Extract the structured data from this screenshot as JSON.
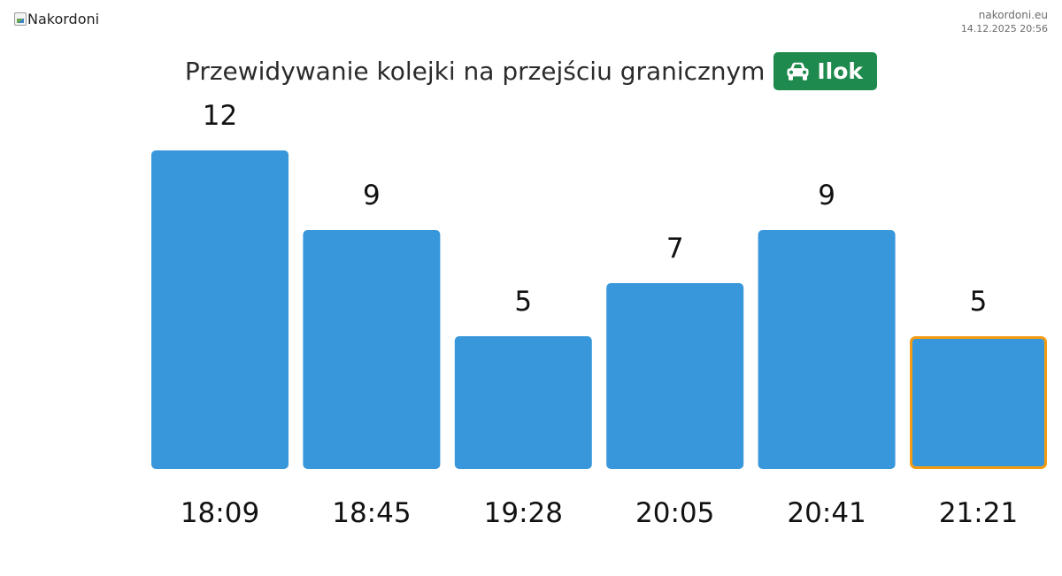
{
  "header": {
    "logo_alt": "Nakordoni",
    "site_domain": "nakordoni.eu",
    "timestamp": "14.12.2025 20:56"
  },
  "title": {
    "text": "Przewidywanie kolejki na przejściu granicznym",
    "badge_icon": "car-icon",
    "badge_label": "Ilok",
    "badge_color": "#1e8a4d"
  },
  "chart_data": {
    "type": "bar",
    "categories": [
      "18:09",
      "18:45",
      "19:28",
      "20:05",
      "20:41",
      "21:21"
    ],
    "values": [
      12,
      9,
      5,
      7,
      9,
      5
    ],
    "highlighted_index": 5,
    "bar_color": "#3897db",
    "highlight_border_color": "#f39c12",
    "title": "Przewidywanie kolejki na przejściu granicznym",
    "xlabel": "",
    "ylabel": "",
    "ylim": [
      0,
      12
    ],
    "grid": false,
    "legend": "none"
  }
}
